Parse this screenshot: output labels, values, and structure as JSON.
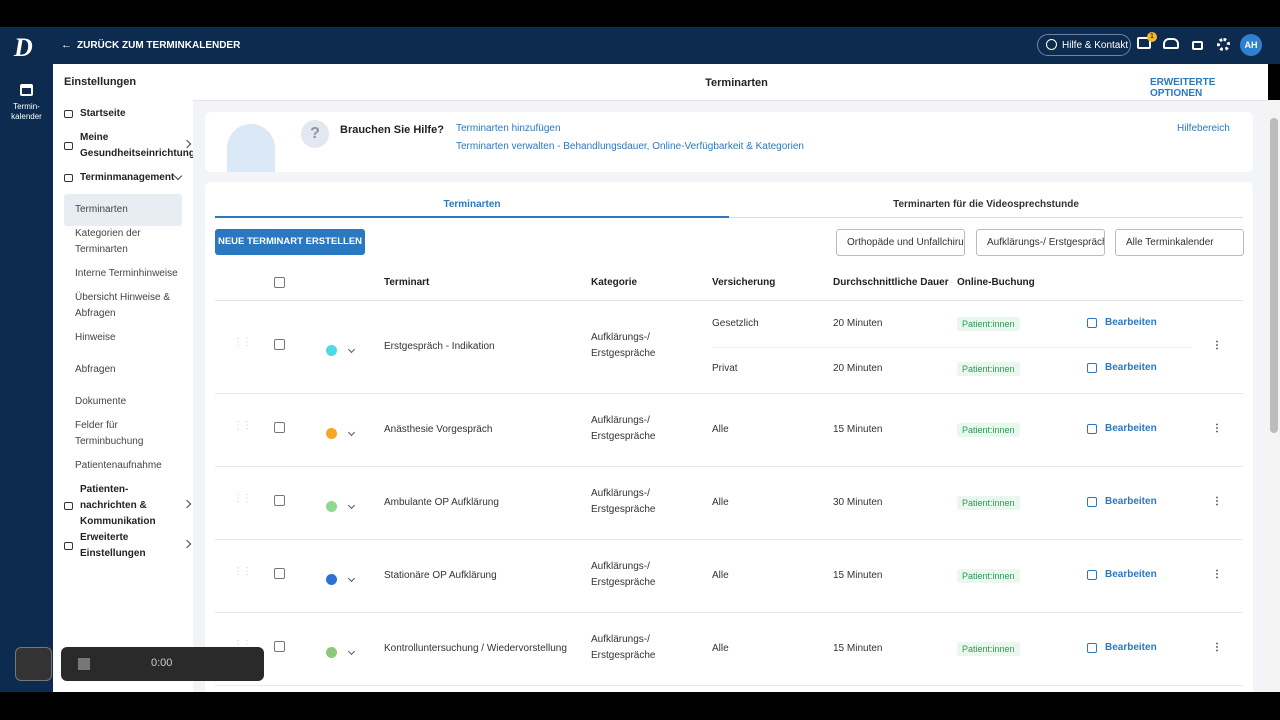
{
  "header": {
    "back_label": "ZURÜCK ZUM TERMINKALENDER",
    "logo": "D",
    "help_label": "Hilfe & Kontakt",
    "notification_count": "1",
    "avatar": "AH"
  },
  "rail": {
    "label_lines": [
      "Termin-",
      "kalender"
    ]
  },
  "sidebar": {
    "title": "Einstellungen",
    "items": [
      {
        "label": "Startseite",
        "level": 0
      },
      {
        "label": "Meine Gesundheitseinrichtung",
        "level": 0,
        "chevron": "right"
      },
      {
        "label": "Terminmanagement",
        "level": 0,
        "chevron": "down"
      },
      {
        "label": "Terminarten",
        "level": 1,
        "active": true
      },
      {
        "label": "Kategorien der Terminarten",
        "level": 1
      },
      {
        "label": "Interne Terminhinweise",
        "level": 1
      },
      {
        "label": "Übersicht Hinweise & Abfragen",
        "level": 1
      },
      {
        "label": "Hinweise",
        "level": 1
      },
      {
        "label": "Abfragen",
        "level": 1
      },
      {
        "label": "Dokumente",
        "level": 1
      },
      {
        "label": "Felder für Terminbuchung",
        "level": 1
      },
      {
        "label": "Patientenaufnahme",
        "level": 1
      },
      {
        "label": "Patienten-nachrichten & Kommunikation",
        "level": 0,
        "chevron": "right"
      },
      {
        "label": "Erweiterte Einstellungen",
        "level": 0,
        "chevron": "right"
      }
    ]
  },
  "page": {
    "title": "Terminarten",
    "options": "ERWEITERTE OPTIONEN"
  },
  "help": {
    "title": "Brauchen Sie Hilfe?",
    "links": [
      "Terminarten hinzufügen",
      "Terminarten verwalten - Behandlungsdauer, Online-Verfügbarkeit & Kategorien"
    ],
    "help_area": "Hilfebereich"
  },
  "tabs": [
    "Terminarten",
    "Terminarten für die Videosprechstunde"
  ],
  "toolbar": {
    "button": "NEUE TERMINART ERSTELLEN",
    "filters": [
      "Orthopäde und Unfallchirurgie",
      "Aufklärungs-/ Erstgespräche",
      "Alle Terminkalender"
    ]
  },
  "table": {
    "columns": [
      "Terminart",
      "Kategorie",
      "Versicherung",
      "Durchschnittliche Dauer",
      "Online-Buchung"
    ],
    "rows": [
      {
        "color": "#4dd9e8",
        "name": "Erstgespräch - Indikation",
        "category": "Aufklärungs-/ Erstgespräche",
        "entries": [
          {
            "insurance": "Gesetzlich",
            "duration": "20 Minuten",
            "online": "Patient:innen",
            "action": "Bearbeiten"
          },
          {
            "insurance": "Privat",
            "duration": "20 Minuten",
            "online": "Patient:innen",
            "action": "Bearbeiten"
          }
        ]
      },
      {
        "color": "#f5a623",
        "name": "Anästhesie Vorgespräch",
        "category": "Aufklärungs-/ Erstgespräche",
        "entries": [
          {
            "insurance": "Alle",
            "duration": "15 Minuten",
            "online": "Patient:innen",
            "action": "Bearbeiten"
          }
        ]
      },
      {
        "color": "#8fd98f",
        "name": "Ambulante OP Aufklärung",
        "category": "Aufklärungs-/ Erstgespräche",
        "entries": [
          {
            "insurance": "Alle",
            "duration": "30 Minuten",
            "online": "Patient:innen",
            "action": "Bearbeiten"
          }
        ]
      },
      {
        "color": "#2f6fd6",
        "name": "Stationäre OP Aufklärung",
        "category": "Aufklärungs-/ Erstgespräche",
        "entries": [
          {
            "insurance": "Alle",
            "duration": "15 Minuten",
            "online": "Patient:innen",
            "action": "Bearbeiten"
          }
        ]
      },
      {
        "color": "#8cc97a",
        "name": "Kontrolluntersuchung / Wiedervorstellung",
        "category": "Aufklärungs-/ Erstgespräche",
        "entries": [
          {
            "insurance": "Alle",
            "duration": "15 Minuten",
            "online": "Patient:innen",
            "action": "Bearbeiten"
          }
        ]
      }
    ]
  },
  "recorder": {
    "time": "0:00"
  }
}
